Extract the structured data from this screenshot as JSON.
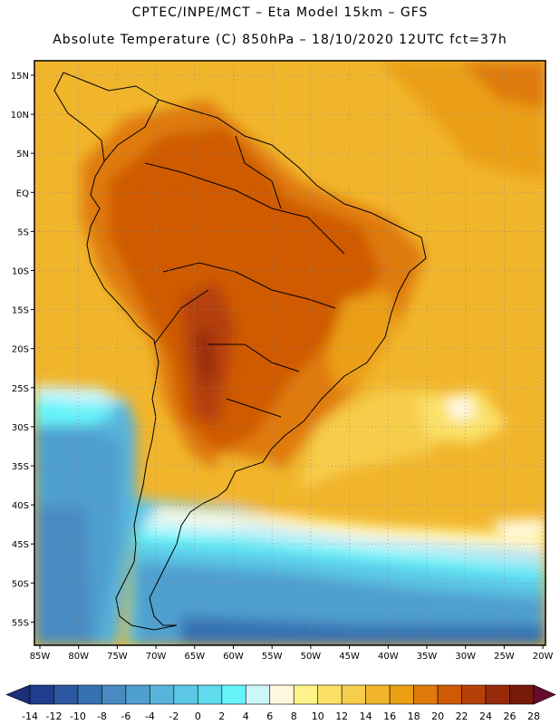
{
  "header": {
    "line1": "CPTEC/INPE/MCT –  Eta Model 15km – GFS",
    "line2": "Absolute Temperature (C) 850hPa – 18/10/2020 12UTC fct=37h"
  },
  "map": {
    "lat_labels": [
      "15N",
      "10N",
      "5N",
      "EQ",
      "5S",
      "10S",
      "15S",
      "20S",
      "25S",
      "30S",
      "35S",
      "40S",
      "45S",
      "50S",
      "55S"
    ],
    "lon_labels": [
      "85W",
      "80W",
      "75W",
      "70W",
      "65W",
      "60W",
      "55W",
      "50W",
      "45W",
      "40W",
      "35W",
      "30W",
      "25W",
      "20W"
    ]
  },
  "colorbar": {
    "labels": [
      "-14",
      "-12",
      "-10",
      "-8",
      "-6",
      "-4",
      "-2",
      "0",
      "2",
      "4",
      "6",
      "8",
      "10",
      "12",
      "14",
      "16",
      "18",
      "20",
      "22",
      "24",
      "26",
      "28"
    ],
    "colors": [
      "#1f3d8c",
      "#2b58a0",
      "#3671b2",
      "#4a8ac2",
      "#4f9fcf",
      "#58b4dc",
      "#5cc8e6",
      "#5fdcef",
      "#66f3f9",
      "#cdf6fb",
      "#fff8e0",
      "#fef28a",
      "#fbe167",
      "#f6cd4c",
      "#f1b52c",
      "#eb9f12",
      "#df7a0a",
      "#cf5a06",
      "#b54008",
      "#962a08",
      "#751a09"
    ],
    "low_end_color": "#1c2f78",
    "high_end_color": "#6a0a2e"
  }
}
